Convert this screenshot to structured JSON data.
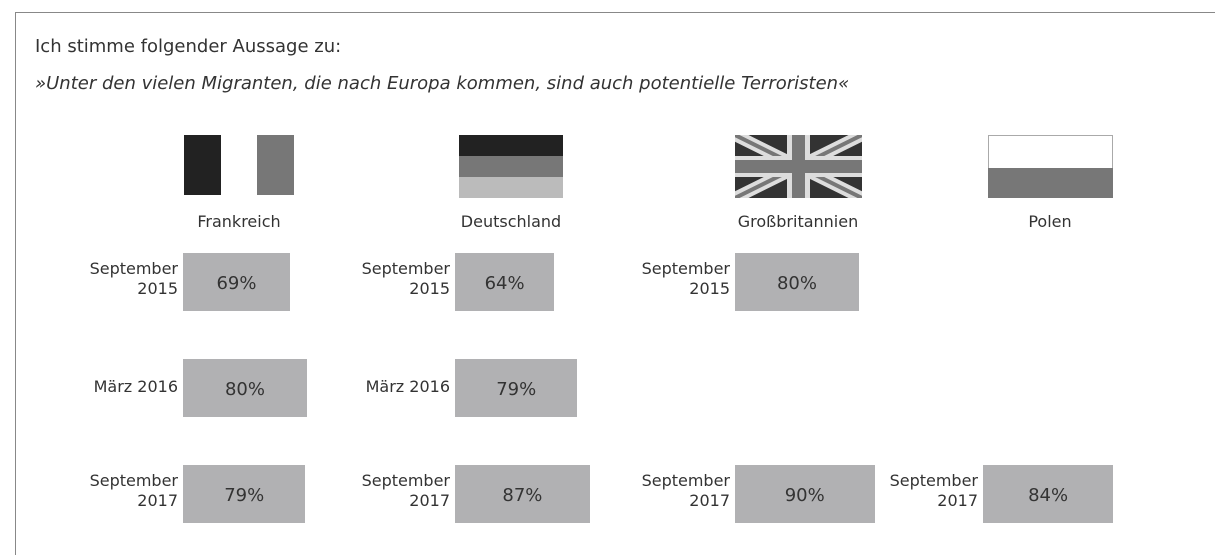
{
  "header": {
    "title": "Ich stimme folgender Aussage zu:",
    "subtitle": "»Unter den vielen Migranten, die nach Europa kommen, sind auch potentielle Terroristen«"
  },
  "chart_data": [
    {
      "type": "bar",
      "orientation": "horizontal",
      "title": "Frankreich",
      "color": "#b1b1b3",
      "categories": [
        "September 2015",
        "März 2016",
        "September 2017"
      ],
      "values": [
        69,
        80,
        79
      ],
      "value_labels": [
        "69%",
        "80%",
        "79%"
      ]
    },
    {
      "type": "bar",
      "orientation": "horizontal",
      "title": "Deutschland",
      "color": "#b1b1b3",
      "categories": [
        "September 2015",
        "März 2016",
        "September 2017"
      ],
      "values": [
        64,
        79,
        87
      ],
      "value_labels": [
        "64%",
        "79%",
        "87%"
      ]
    },
    {
      "type": "bar",
      "orientation": "horizontal",
      "title": "Großbritannien",
      "color": "#b1b1b3",
      "categories": [
        "September 2015",
        null,
        "September 2017"
      ],
      "values": [
        80,
        null,
        90
      ],
      "value_labels": [
        "80%",
        null,
        "90%"
      ]
    },
    {
      "type": "bar",
      "orientation": "horizontal",
      "title": "Polen",
      "color": "#b1b1b3",
      "categories": [
        null,
        null,
        "September 2017"
      ],
      "values": [
        null,
        null,
        84
      ],
      "value_labels": [
        null,
        null,
        "84%"
      ]
    }
  ]
}
